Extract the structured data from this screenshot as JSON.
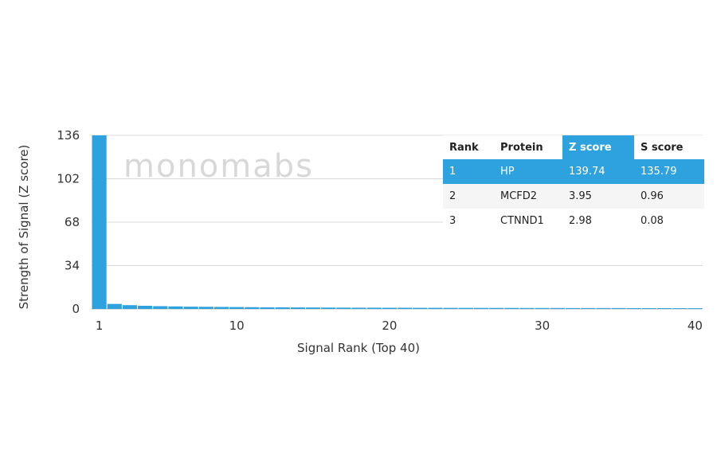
{
  "chart_data": {
    "type": "bar",
    "xlabel": "Signal Rank (Top 40)",
    "ylabel": "Strength of Signal (Z score)",
    "x_ticks": [
      "1",
      "10",
      "20",
      "30",
      "40"
    ],
    "y_ticks": [
      "0",
      "34",
      "68",
      "102",
      "136"
    ],
    "ylim": [
      0,
      136
    ],
    "xlim": [
      1,
      40
    ],
    "grid": true,
    "bar_color": "#2ea2de",
    "values": [
      139.74,
      3.95,
      2.98,
      2.5,
      2.2,
      2.0,
      1.8,
      1.7,
      1.6,
      1.5,
      1.4,
      1.3,
      1.25,
      1.2,
      1.15,
      1.1,
      1.05,
      1.0,
      1.0,
      0.95,
      0.95,
      0.9,
      0.9,
      0.85,
      0.85,
      0.8,
      0.8,
      0.8,
      0.75,
      0.75,
      0.75,
      0.7,
      0.7,
      0.7,
      0.7,
      0.65,
      0.65,
      0.65,
      0.6,
      0.6
    ]
  },
  "watermark": "monomabs",
  "table": {
    "headers": [
      "Rank",
      "Protein",
      "Z score",
      "S score"
    ],
    "rows": [
      [
        "1",
        "HP",
        "139.74",
        "135.79"
      ],
      [
        "2",
        "MCFD2",
        "3.95",
        "0.96"
      ],
      [
        "3",
        "CTNND1",
        "2.98",
        "0.08"
      ]
    ]
  }
}
